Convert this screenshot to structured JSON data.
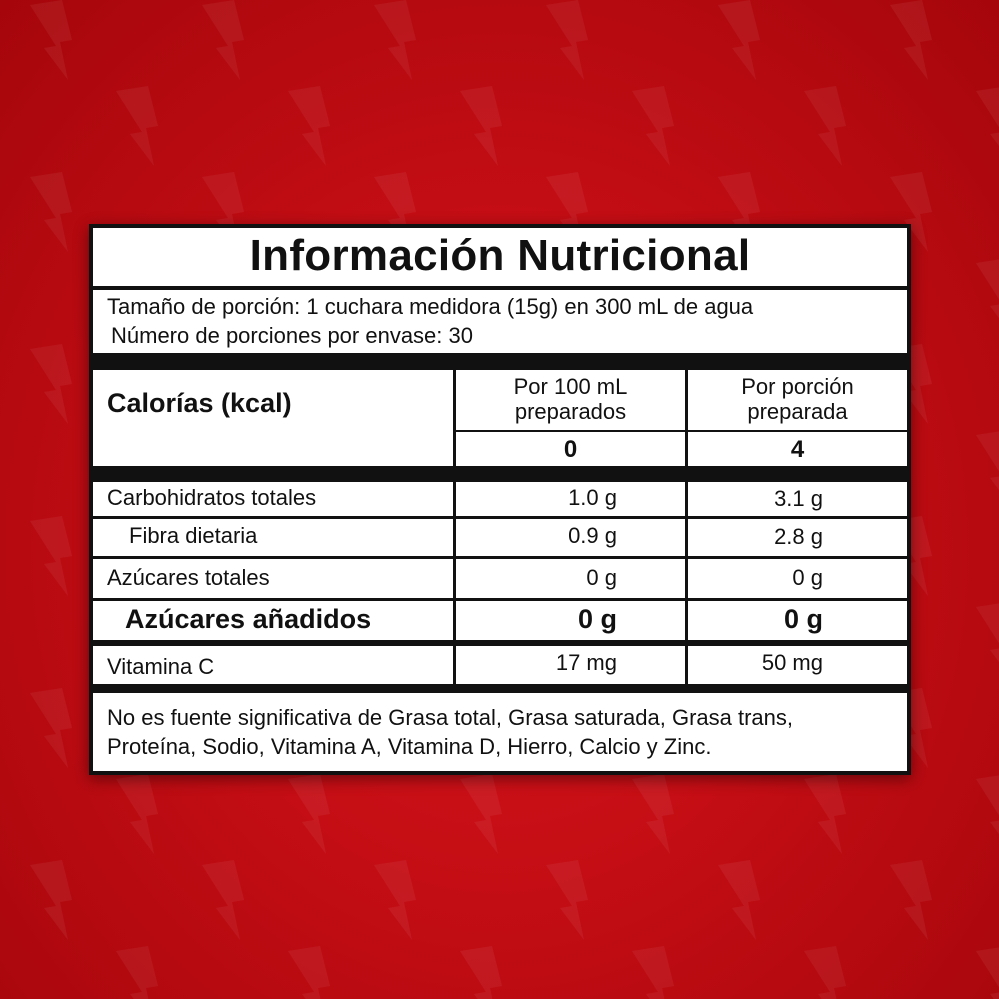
{
  "background": {
    "color": "#c30d14",
    "pattern_icon": "lightning-bolt-icon"
  },
  "label": {
    "title": "Información Nutricional",
    "serving_size": "Tamaño de porción: 1 cuchara medidora (15g) en 300 mL de agua",
    "servings_per_container": "Número de porciones por envase: 30",
    "calories_label": "Calorías (kcal)",
    "columns": [
      {
        "line1": "Por 100 mL",
        "line2": "preparados"
      },
      {
        "line1": "Por porción",
        "line2": "preparada"
      }
    ],
    "calories": [
      "0",
      "4"
    ],
    "rows": [
      {
        "name": "Carbohidratos totales",
        "per100": "1.0 g",
        "perServing": "3.1 g"
      },
      {
        "name": "Fibra dietaria",
        "per100": "0.9 g",
        "perServing": "2.8 g"
      },
      {
        "name": "Azúcares totales",
        "per100": "0 g",
        "perServing": "0 g"
      },
      {
        "name": "Azúcares añadidos",
        "per100": "0 g",
        "perServing": "0 g"
      },
      {
        "name": "Vitamina C",
        "per100": "17 mg",
        "perServing": "50 mg"
      }
    ],
    "footer_line1": "No es fuente significativa de Grasa total, Grasa saturada, Grasa trans,",
    "footer_line2": "Proteína, Sodio, Vitamina A, Vitamina D, Hierro, Calcio y Zinc."
  }
}
